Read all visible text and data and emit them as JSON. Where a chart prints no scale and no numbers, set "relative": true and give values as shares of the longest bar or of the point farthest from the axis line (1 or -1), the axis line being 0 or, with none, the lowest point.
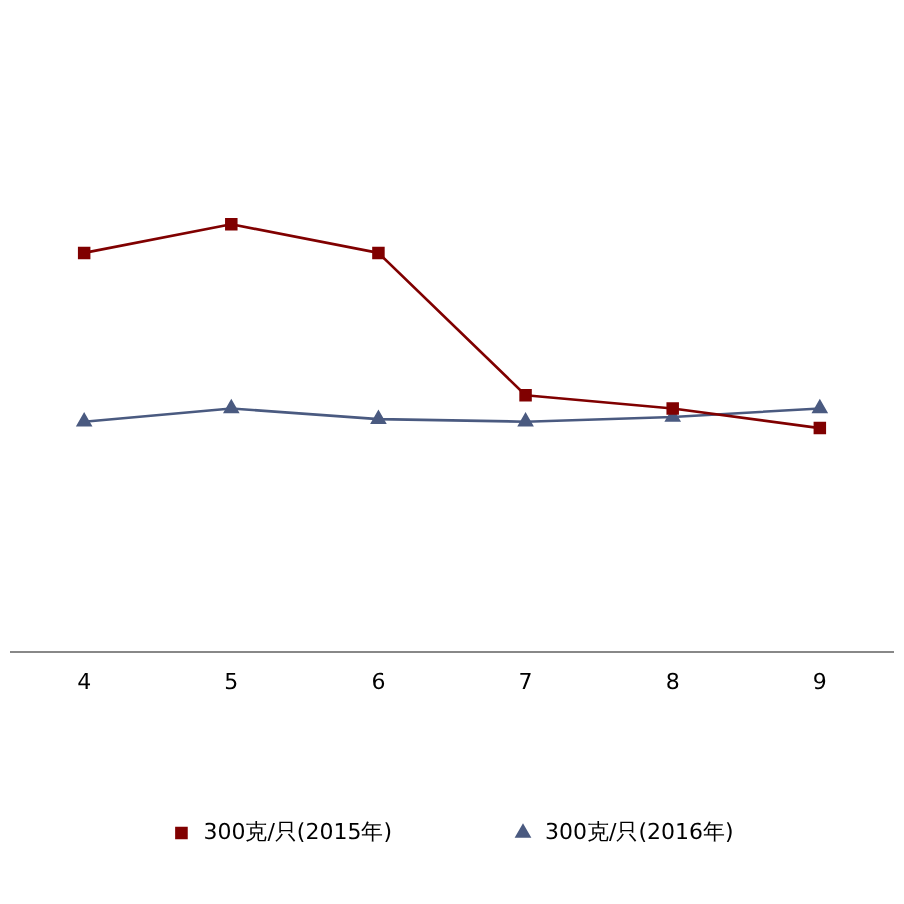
{
  "chart_data": {
    "type": "line",
    "relative": true,
    "categories": [
      "4",
      "5",
      "6",
      "7",
      "8",
      "9"
    ],
    "series": [
      {
        "name": "300克/只(2015年)",
        "color": "#800000",
        "marker": "square",
        "values": [
          0.933,
          1,
          0.933,
          0.6,
          0.569,
          0.523
        ]
      },
      {
        "name": "300克/只(2016年)",
        "color": "#4a5a80",
        "marker": "triangle",
        "values": [
          0.538,
          0.569,
          0.544,
          0.538,
          0.549,
          0.569
        ]
      }
    ],
    "legend": "bottom",
    "line_style": "solid"
  }
}
